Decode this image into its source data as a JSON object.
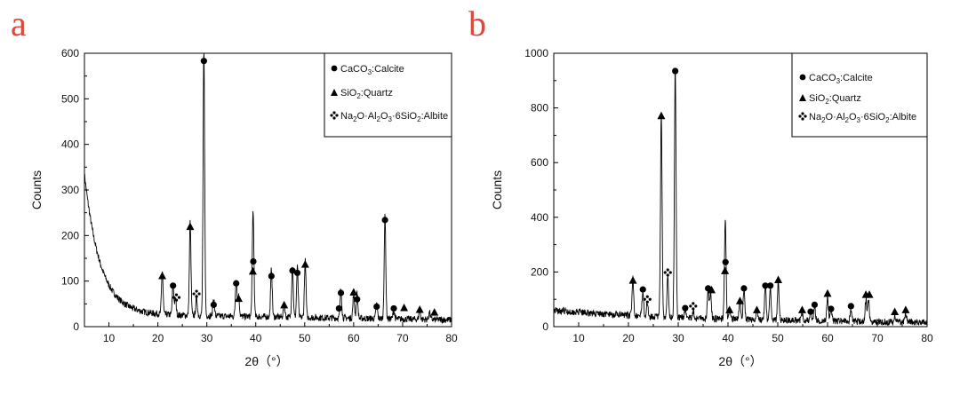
{
  "chart_data": [
    {
      "type": "line",
      "panel_label": "a",
      "xlabel": "2θ（°）",
      "ylabel": "Counts",
      "xlim": [
        5,
        80
      ],
      "ylim": [
        0,
        600
      ],
      "xticks": [
        10,
        20,
        30,
        40,
        50,
        60,
        70,
        80
      ],
      "yticks": [
        0,
        100,
        200,
        300,
        400,
        500,
        600
      ],
      "legend_position": "top-right",
      "legend": [
        {
          "marker": "circle",
          "phase": "CaCO",
          "sub": "3",
          "tail": ":Calcite"
        },
        {
          "marker": "triangle",
          "phase": "SiO",
          "sub": "2",
          "tail": ":Quartz"
        },
        {
          "marker": "diamond",
          "phase": "Na",
          "sub": "2",
          "tail": "O·Al",
          "sub2": "2",
          "tail2": "O",
          "sub3": "3",
          "tail3": "·6SiO",
          "sub4": "2",
          "tail4": ":Albite"
        }
      ],
      "background": {
        "start": 335,
        "decay": 3.2,
        "floor": 28,
        "end": 15
      },
      "peaks": [
        {
          "x": 20.9,
          "y": 95
        },
        {
          "x": 23.1,
          "y": 65
        },
        {
          "x": 23.6,
          "y": 35
        },
        {
          "x": 26.6,
          "y": 205
        },
        {
          "x": 27.9,
          "y": 40
        },
        {
          "x": 29.4,
          "y": 580
        },
        {
          "x": 31.4,
          "y": 40
        },
        {
          "x": 36.0,
          "y": 85
        },
        {
          "x": 36.5,
          "y": 45
        },
        {
          "x": 39.4,
          "y": 108
        },
        {
          "x": 39.5,
          "y": 135
        },
        {
          "x": 43.2,
          "y": 105
        },
        {
          "x": 45.8,
          "y": 30
        },
        {
          "x": 47.5,
          "y": 115
        },
        {
          "x": 48.5,
          "y": 110
        },
        {
          "x": 50.1,
          "y": 125
        },
        {
          "x": 57.4,
          "y": 65
        },
        {
          "x": 60.0,
          "y": 52
        },
        {
          "x": 60.7,
          "y": 55
        },
        {
          "x": 64.7,
          "y": 32
        },
        {
          "x": 66.4,
          "y": 225
        },
        {
          "x": 68.2,
          "y": 18
        },
        {
          "x": 73.5,
          "y": 20
        },
        {
          "x": 75.5,
          "y": 15
        }
      ],
      "markers": [
        {
          "type": "triangle",
          "x": 20.9,
          "y": 112
        },
        {
          "type": "circle",
          "x": 23.1,
          "y": 90
        },
        {
          "type": "diamond",
          "x": 23.8,
          "y": 64
        },
        {
          "type": "triangle",
          "x": 26.6,
          "y": 220
        },
        {
          "type": "diamond",
          "x": 27.9,
          "y": 72
        },
        {
          "type": "circle",
          "x": 29.4,
          "y": 583
        },
        {
          "type": "circle",
          "x": 31.4,
          "y": 48
        },
        {
          "type": "circle",
          "x": 36.0,
          "y": 95
        },
        {
          "type": "triangle",
          "x": 36.5,
          "y": 62
        },
        {
          "type": "triangle",
          "x": 39.4,
          "y": 122
        },
        {
          "type": "circle",
          "x": 39.5,
          "y": 143
        },
        {
          "type": "circle",
          "x": 43.2,
          "y": 111
        },
        {
          "type": "triangle",
          "x": 45.8,
          "y": 48
        },
        {
          "type": "circle",
          "x": 47.5,
          "y": 123
        },
        {
          "type": "circle",
          "x": 48.5,
          "y": 118
        },
        {
          "type": "triangle",
          "x": 50.1,
          "y": 137
        },
        {
          "type": "circle",
          "x": 57.0,
          "y": 40
        },
        {
          "type": "circle",
          "x": 57.4,
          "y": 74
        },
        {
          "type": "triangle",
          "x": 60.0,
          "y": 76
        },
        {
          "type": "circle",
          "x": 60.7,
          "y": 60
        },
        {
          "type": "circle",
          "x": 64.7,
          "y": 44
        },
        {
          "type": "circle",
          "x": 66.4,
          "y": 234
        },
        {
          "type": "circle",
          "x": 68.2,
          "y": 40
        },
        {
          "type": "triangle",
          "x": 70.3,
          "y": 42
        },
        {
          "type": "triangle",
          "x": 73.5,
          "y": 38
        },
        {
          "type": "triangle",
          "x": 76.5,
          "y": 32
        }
      ]
    },
    {
      "type": "line",
      "panel_label": "b",
      "xlabel": "2θ（°）",
      "ylabel": "Counts",
      "xlim": [
        5,
        80
      ],
      "ylim": [
        0,
        1000
      ],
      "xticks": [
        10,
        20,
        30,
        40,
        50,
        60,
        70,
        80
      ],
      "yticks": [
        0,
        200,
        400,
        600,
        800,
        1000
      ],
      "legend_position": "top-right",
      "legend": [
        {
          "marker": "circle",
          "phase": "CaCO",
          "sub": "3",
          "tail": ":Calcite"
        },
        {
          "marker": "triangle",
          "phase": "SiO",
          "sub": "2",
          "tail": ":Quartz"
        },
        {
          "marker": "diamond",
          "phase": "Na",
          "sub": "2",
          "tail": "O·Al",
          "sub2": "2",
          "tail2": "O",
          "sub3": "3",
          "tail3": "·6SiO",
          "sub4": "2",
          "tail4": ":Albite"
        }
      ],
      "background": {
        "start": 60,
        "decay": 20,
        "floor": 30,
        "end": 15
      },
      "peaks": [
        {
          "x": 20.9,
          "y": 135
        },
        {
          "x": 22.9,
          "y": 95
        },
        {
          "x": 23.8,
          "y": 50
        },
        {
          "x": 26.6,
          "y": 740
        },
        {
          "x": 27.9,
          "y": 155
        },
        {
          "x": 29.4,
          "y": 920
        },
        {
          "x": 31.4,
          "y": 35
        },
        {
          "x": 33.0,
          "y": 25
        },
        {
          "x": 36.0,
          "y": 110
        },
        {
          "x": 36.5,
          "y": 95
        },
        {
          "x": 39.4,
          "y": 175
        },
        {
          "x": 39.5,
          "y": 205
        },
        {
          "x": 40.3,
          "y": 35
        },
        {
          "x": 42.4,
          "y": 70
        },
        {
          "x": 43.2,
          "y": 110
        },
        {
          "x": 45.8,
          "y": 35
        },
        {
          "x": 47.5,
          "y": 120
        },
        {
          "x": 48.5,
          "y": 120
        },
        {
          "x": 50.1,
          "y": 145
        },
        {
          "x": 54.9,
          "y": 30
        },
        {
          "x": 56.6,
          "y": 35
        },
        {
          "x": 57.4,
          "y": 50
        },
        {
          "x": 60.0,
          "y": 90
        },
        {
          "x": 60.7,
          "y": 50
        },
        {
          "x": 64.7,
          "y": 40
        },
        {
          "x": 67.7,
          "y": 80
        },
        {
          "x": 68.2,
          "y": 85
        },
        {
          "x": 73.5,
          "y": 25
        },
        {
          "x": 75.7,
          "y": 30
        }
      ],
      "markers": [
        {
          "type": "triangle",
          "x": 20.9,
          "y": 170
        },
        {
          "type": "circle",
          "x": 22.9,
          "y": 136
        },
        {
          "type": "diamond",
          "x": 23.8,
          "y": 100
        },
        {
          "type": "triangle",
          "x": 26.6,
          "y": 772
        },
        {
          "type": "diamond",
          "x": 27.9,
          "y": 198
        },
        {
          "type": "circle",
          "x": 29.4,
          "y": 935
        },
        {
          "type": "circle",
          "x": 31.4,
          "y": 68
        },
        {
          "type": "diamond",
          "x": 33.0,
          "y": 75
        },
        {
          "type": "circle",
          "x": 36.0,
          "y": 140
        },
        {
          "type": "triangle",
          "x": 36.7,
          "y": 135
        },
        {
          "type": "circle",
          "x": 39.5,
          "y": 236
        },
        {
          "type": "triangle",
          "x": 39.4,
          "y": 205
        },
        {
          "type": "triangle",
          "x": 40.3,
          "y": 62
        },
        {
          "type": "triangle",
          "x": 42.4,
          "y": 95
        },
        {
          "type": "circle",
          "x": 43.2,
          "y": 140
        },
        {
          "type": "triangle",
          "x": 45.8,
          "y": 62
        },
        {
          "type": "circle",
          "x": 47.5,
          "y": 150
        },
        {
          "type": "circle",
          "x": 48.5,
          "y": 150
        },
        {
          "type": "triangle",
          "x": 50.1,
          "y": 172
        },
        {
          "type": "triangle",
          "x": 54.9,
          "y": 62
        },
        {
          "type": "circle",
          "x": 56.6,
          "y": 55
        },
        {
          "type": "circle",
          "x": 57.4,
          "y": 80
        },
        {
          "type": "triangle",
          "x": 60.0,
          "y": 122
        },
        {
          "type": "circle",
          "x": 60.7,
          "y": 65
        },
        {
          "type": "circle",
          "x": 64.7,
          "y": 75
        },
        {
          "type": "triangle",
          "x": 67.7,
          "y": 118
        },
        {
          "type": "triangle",
          "x": 68.4,
          "y": 118
        },
        {
          "type": "triangle",
          "x": 73.5,
          "y": 55
        },
        {
          "type": "triangle",
          "x": 75.7,
          "y": 62
        }
      ]
    }
  ],
  "colors": {
    "line": "#000000",
    "panel_label": "#d8493e",
    "axis": "#000000"
  }
}
